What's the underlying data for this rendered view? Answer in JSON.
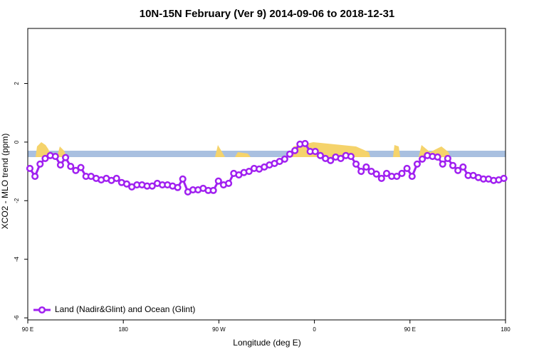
{
  "chart_data": {
    "type": "line",
    "title": "10N-15N February (Ver 9)   2014-09-06 to 2018-12-31",
    "x_label": "Longitude (deg E)",
    "y_label": "XCO2 - MLO trend (ppm)",
    "xlim": [
      90,
      540
    ],
    "ylim": [
      -6.07,
      3.88
    ],
    "xticks": [
      {
        "value": 90,
        "label": "90 E"
      },
      180,
      {
        "value": 270,
        "label": "90 W"
      },
      {
        "value": 360,
        "label": "0"
      },
      {
        "value": 450,
        "label": "90 E"
      },
      {
        "value": 540,
        "label": "180"
      }
    ],
    "yticks": [
      2,
      0,
      -2,
      -4,
      -6
    ],
    "legend": "bottom-left",
    "x": [
      92,
      96.8,
      101.6,
      106.4,
      111.2,
      116,
      120.8,
      125.6,
      130.4,
      135.2,
      140,
      144.8,
      149.6,
      154.4,
      159.2,
      164,
      168.8,
      173.6,
      178.4,
      183.2,
      188,
      192.8,
      197.6,
      202.4,
      207.2,
      212,
      216.8,
      221.6,
      226.4,
      231.2,
      236,
      240.8,
      245.6,
      250.4,
      255.2,
      260,
      264.8,
      269.6,
      274.4,
      279.2,
      284,
      288.8,
      293.6,
      298.4,
      303.2,
      308,
      312.8,
      317.6,
      322.4,
      327.2,
      332,
      336.8,
      341.6,
      346.4,
      351.2,
      356,
      360.8,
      365.6,
      370.4,
      375.2,
      380,
      384.8,
      389.6,
      394.4,
      399.2,
      404,
      408.8,
      413.6,
      418.4,
      423.2,
      428,
      432.8,
      437.6,
      442.4,
      447.2,
      452,
      456.8,
      461.6,
      466.4,
      471.2,
      476,
      480.8,
      485.6,
      490.4,
      495.2,
      500,
      504.8,
      509.6,
      514.4,
      519.2,
      524,
      528.8,
      533.6,
      538.4
    ],
    "series": [
      {
        "name": "Land (Nadir&Glint) and Ocean (Glint)",
        "color": "#a020f0",
        "values": [
          -0.9,
          -1.17,
          -0.75,
          -0.56,
          -0.46,
          -0.49,
          -0.78,
          -0.53,
          -0.83,
          -0.97,
          -0.87,
          -1.17,
          -1.17,
          -1.24,
          -1.29,
          -1.24,
          -1.31,
          -1.24,
          -1.38,
          -1.43,
          -1.53,
          -1.46,
          -1.46,
          -1.5,
          -1.5,
          -1.41,
          -1.46,
          -1.46,
          -1.5,
          -1.55,
          -1.26,
          -1.7,
          -1.63,
          -1.63,
          -1.58,
          -1.65,
          -1.65,
          -1.33,
          -1.46,
          -1.41,
          -1.07,
          -1.12,
          -1.04,
          -1.0,
          -0.9,
          -0.92,
          -0.85,
          -0.78,
          -0.73,
          -0.66,
          -0.58,
          -0.41,
          -0.29,
          -0.07,
          -0.05,
          -0.32,
          -0.32,
          -0.46,
          -0.56,
          -0.63,
          -0.51,
          -0.56,
          -0.46,
          -0.49,
          -0.75,
          -1.0,
          -0.85,
          -1.0,
          -1.09,
          -1.24,
          -1.07,
          -1.17,
          -1.17,
          -1.07,
          -0.9,
          -1.17,
          -0.75,
          -0.58,
          -0.46,
          -0.49,
          -0.51,
          -0.75,
          -0.56,
          -0.8,
          -0.97,
          -0.85,
          -1.14,
          -1.14,
          -1.21,
          -1.26,
          -1.26,
          -1.31,
          -1.29,
          -1.24
        ]
      }
    ]
  }
}
